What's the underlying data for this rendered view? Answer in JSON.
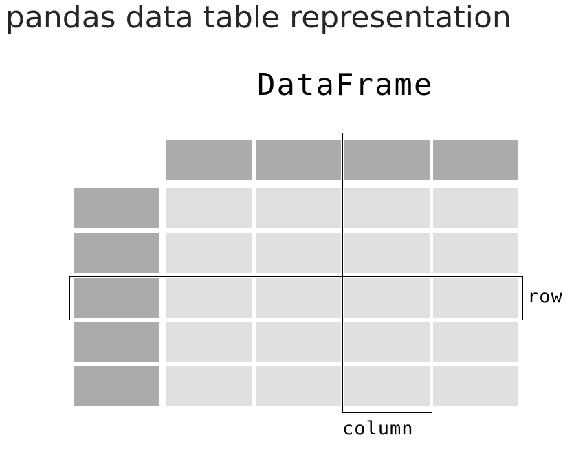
{
  "heading": "pandas data table representation",
  "diagram": {
    "title": "DataFrame",
    "row_label": "row",
    "column_label": "column",
    "n_columns": 4,
    "n_rows": 5,
    "highlighted_row": 3,
    "highlighted_column": 3
  },
  "colors": {
    "header_cell": "#ababab",
    "index_cell": "#ababab",
    "value_cell": "#e0e0e0",
    "outline": "#000000"
  }
}
